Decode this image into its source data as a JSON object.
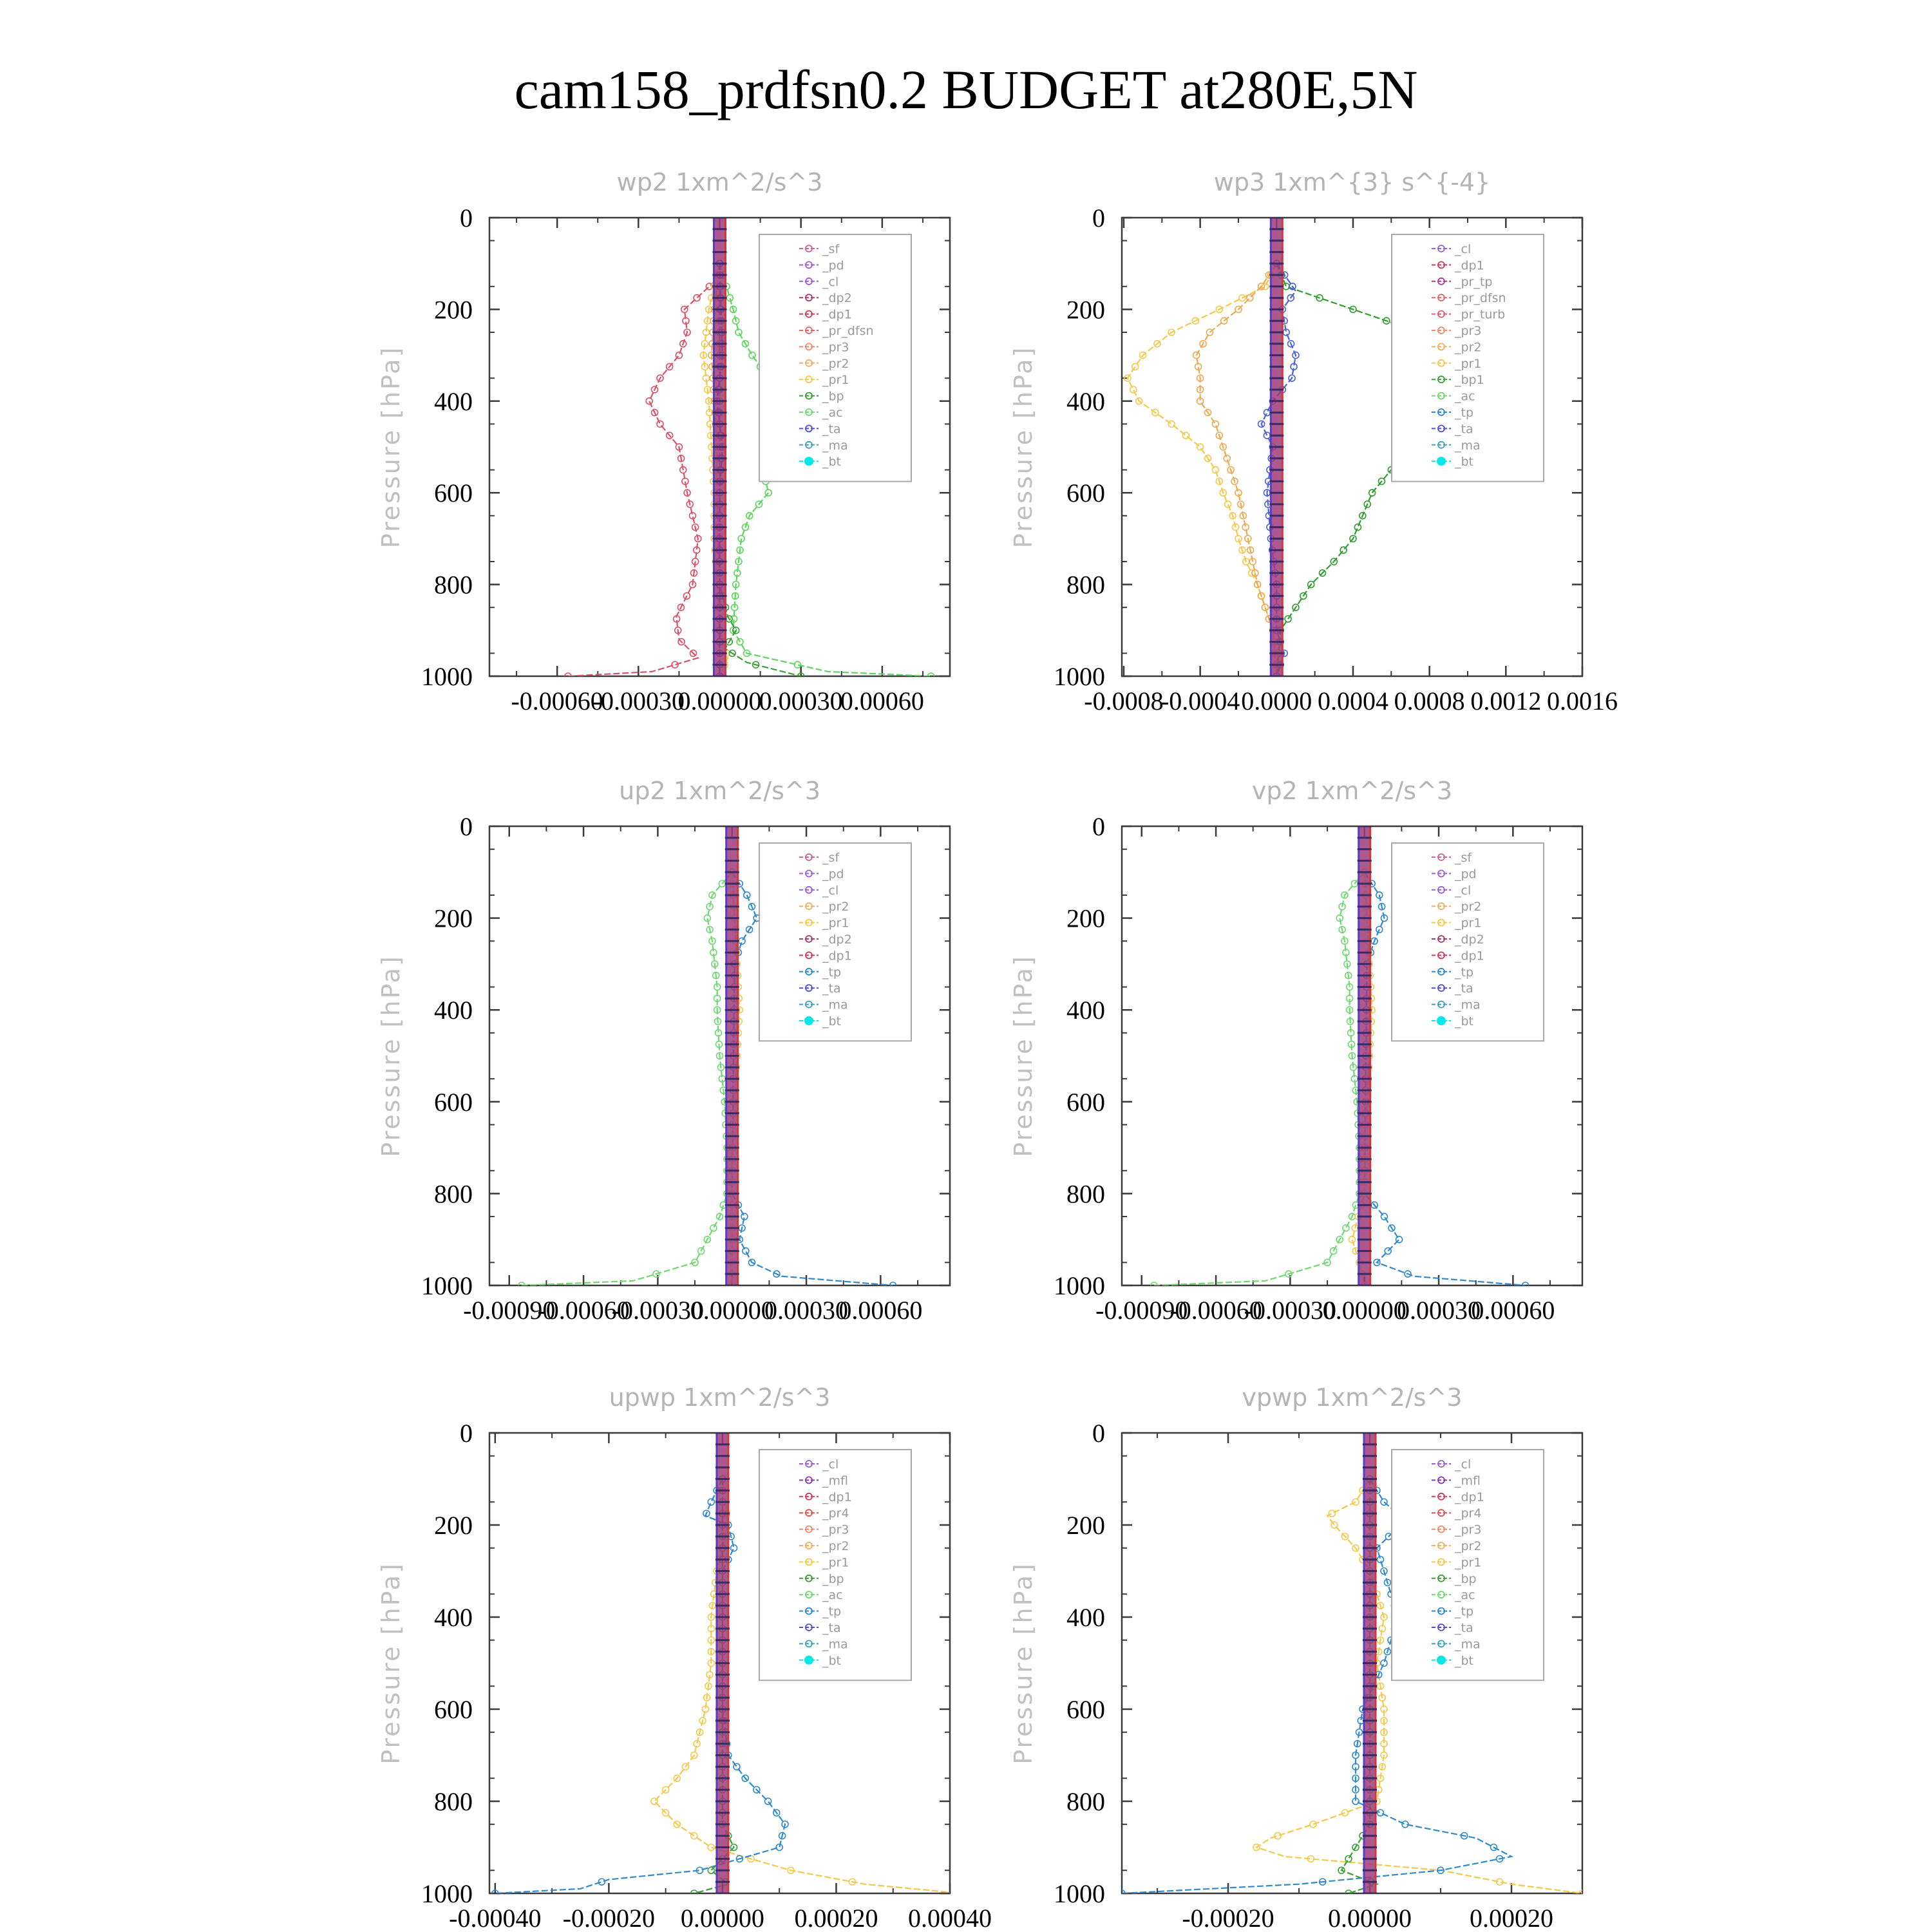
{
  "title": "cam158_prdfsn0.2  BUDGET at280E,5N",
  "chart_data": [
    {
      "type": "line",
      "title": "wp2   1xm^2/s^3",
      "ylabel": "Pressure [hPa]",
      "xlim": [
        -0.00085,
        0.00085
      ],
      "ylim": [
        1000,
        0
      ],
      "yticks": [
        0,
        200,
        400,
        600,
        800,
        1000
      ],
      "xticks": [
        -0.0006,
        -0.0003,
        0.0,
        0.0003,
        0.0006
      ],
      "xtick_labels": [
        "-0.00060",
        "-0.00030",
        "0.00000",
        "0.00030",
        "0.00060"
      ],
      "legend_position": "top-right",
      "legend": [
        "_sf",
        "_pd",
        "_cl",
        "_dp2",
        "_dp1",
        "_pr_dfsn",
        "_pr3",
        "_pr2",
        "_pr1",
        "_bp",
        "_ac",
        "_ta",
        "_ma",
        "_bt"
      ],
      "series": [
        {
          "name": "_dp1",
          "color": "#dc5068",
          "y": [
            100,
            140,
            200,
            250,
            300,
            350,
            400,
            450,
            500,
            600,
            700,
            800,
            870,
            920,
            960,
            990,
            1000
          ],
          "values": [
            0,
            -2e-05,
            -0.00013,
            -0.00012,
            -0.00015,
            -0.00022,
            -0.00026,
            -0.00022,
            -0.00015,
            -0.00012,
            -8e-05,
            -0.0001,
            -0.00016,
            -0.00015,
            -8e-05,
            -0.00025,
            -0.00056
          ]
        },
        {
          "name": "_pr2",
          "color": "#f5c84a",
          "y": [
            100,
            200,
            300,
            400,
            500,
            600,
            700,
            800,
            900,
            960,
            1000
          ],
          "values": [
            0,
            -4e-05,
            -6e-05,
            -4e-05,
            -3e-05,
            -2e-05,
            -2e-05,
            -1e-05,
            0,
            3e-05,
            0
          ]
        },
        {
          "name": "_pr1",
          "color": "#f0a850",
          "y": [
            100,
            200,
            300,
            400,
            500,
            600,
            800,
            1000
          ],
          "values": [
            0,
            -2e-05,
            -3e-05,
            -2e-05,
            -1e-05,
            -1e-05,
            0,
            0
          ]
        },
        {
          "name": "_ac",
          "color": "#5cd65c",
          "y": [
            100,
            140,
            200,
            250,
            300,
            350,
            400,
            450,
            500,
            550,
            600,
            650,
            700,
            800,
            900,
            950,
            990,
            1000
          ],
          "values": [
            0,
            2e-05,
            5e-05,
            7e-05,
            0.00012,
            0.00018,
            0.0003,
            0.00033,
            0.00022,
            0.00016,
            0.00018,
            0.00011,
            8e-05,
            6e-05,
            5e-05,
            0.0001,
            0.0004,
            0.00078
          ]
        },
        {
          "name": "_bp",
          "color": "#3aa03a",
          "y": [
            100,
            800,
            870,
            900,
            940,
            970,
            1000
          ],
          "values": [
            0,
            0,
            3e-05,
            6e-05,
            2e-05,
            0.0001,
            0.0003
          ]
        },
        {
          "name": "_ta",
          "color": "#3a3ad0",
          "y": [
            100,
            300,
            400,
            500,
            600,
            800,
            1000
          ],
          "values": [
            0,
            1e-05,
            -1e-05,
            1e-05,
            0,
            0,
            0
          ]
        }
      ]
    },
    {
      "type": "line",
      "title": "wp3   1xm^{3} s^{-4}",
      "ylabel": "Pressure [hPa]",
      "xlim": [
        -0.00081,
        0.0016
      ],
      "ylim": [
        1000,
        0
      ],
      "yticks": [
        0,
        200,
        400,
        600,
        800,
        1000
      ],
      "xticks": [
        -0.0008,
        -0.0004,
        0.0,
        0.0004,
        0.0008,
        0.0012,
        0.0016
      ],
      "xtick_labels": [
        "-0.0008",
        "-0.0004",
        "0.0000",
        "0.0004",
        "0.0008",
        "0.0012",
        "0.0016"
      ],
      "legend_position": "top-right",
      "legend": [
        "_cl",
        "_dp1",
        "_pr_tp",
        "_pr_dfsn",
        "_pr_turb",
        "_pr3",
        "_pr2",
        "_pr1",
        "_bp1",
        "_ac",
        "_tp",
        "_ta",
        "_ma",
        "_bt"
      ],
      "series": [
        {
          "name": "_bp1",
          "color": "#2e9e2e",
          "y": [
            100,
            150,
            200,
            250,
            300,
            350,
            400,
            450,
            500,
            550,
            600,
            650,
            700,
            750,
            800,
            850,
            900,
            950,
            1000
          ],
          "values": [
            0,
            5e-05,
            0.0004,
            0.00075,
            0.0009,
            0.001,
            0.00115,
            0.0009,
            0.00065,
            0.0006,
            0.0005,
            0.00045,
            0.0004,
            0.0003,
            0.00018,
            0.0001,
            2e-05,
            1e-05,
            0
          ]
        },
        {
          "name": "_pr2",
          "color": "#f5c84a",
          "y": [
            100,
            150,
            200,
            250,
            300,
            350,
            400,
            450,
            500,
            550,
            600,
            650,
            700,
            750,
            800,
            850,
            900,
            950,
            1000
          ],
          "values": [
            0,
            -6e-05,
            -0.0003,
            -0.00055,
            -0.0007,
            -0.00078,
            -0.00072,
            -0.00055,
            -0.0004,
            -0.00032,
            -0.00028,
            -0.00023,
            -0.0002,
            -0.00016,
            -0.0001,
            -6e-05,
            -2e-05,
            0,
            0
          ]
        },
        {
          "name": "_pr1",
          "color": "#f0a850",
          "y": [
            100,
            150,
            200,
            250,
            300,
            350,
            400,
            450,
            500,
            600,
            700,
            800,
            900,
            1000
          ],
          "values": [
            0,
            -8e-05,
            -0.0002,
            -0.00035,
            -0.00042,
            -0.0004,
            -0.0004,
            -0.00032,
            -0.00028,
            -0.0002,
            -0.00015,
            -0.0001,
            -2e-05,
            0
          ]
        },
        {
          "name": "_tp",
          "color": "#4a60e0",
          "y": [
            100,
            160,
            200,
            250,
            300,
            350,
            400,
            450,
            500,
            600,
            700,
            800,
            900,
            950,
            1000
          ],
          "values": [
            0,
            0.0001,
            3e-05,
            5e-05,
            0.0001,
            8e-05,
            -2e-05,
            -8e-05,
            -2e-05,
            -5e-05,
            -3e-05,
            0,
            0,
            4e-05,
            0
          ]
        }
      ]
    },
    {
      "type": "line",
      "title": "up2   1xm^2/s^3",
      "ylabel": "Pressure [hPa]",
      "xlim": [
        -0.00098,
        0.00088
      ],
      "ylim": [
        1000,
        0
      ],
      "yticks": [
        0,
        200,
        400,
        600,
        800,
        1000
      ],
      "xticks": [
        -0.0009,
        -0.0006,
        -0.0003,
        0.0,
        0.0003,
        0.0006
      ],
      "xtick_labels": [
        "-0.00090",
        "-0.00060",
        "-0.00030",
        "0.00000",
        "0.00030",
        "0.00060"
      ],
      "legend_position": "top-right",
      "legend": [
        "_sf",
        "_pd",
        "_cl",
        "_pr2",
        "_pr1",
        "_dp2",
        "_dp1",
        "_tp",
        "_ta",
        "_ma",
        "_bt"
      ],
      "series": [
        {
          "name": "_dp1",
          "color": "#70d870",
          "y": [
            100,
            150,
            200,
            250,
            300,
            350,
            400,
            500,
            600,
            700,
            800,
            850,
            900,
            950,
            990,
            1000
          ],
          "values": [
            0,
            -8e-05,
            -0.0001,
            -8e-05,
            -7e-05,
            -6e-05,
            -6e-05,
            -5e-05,
            -3e-05,
            -2e-05,
            -2e-05,
            -5e-05,
            -0.0001,
            -0.00015,
            -0.0004,
            -0.00085
          ]
        },
        {
          "name": "_tp",
          "color": "#2e8ad0",
          "y": [
            100,
            150,
            200,
            250,
            300,
            800,
            850,
            900,
            950,
            980,
            1000
          ],
          "values": [
            0,
            6e-05,
            0.0001,
            4e-05,
            1e-05,
            0,
            5e-05,
            3e-05,
            8e-05,
            0.0002,
            0.00065
          ]
        },
        {
          "name": "_pr1",
          "color": "#f5c84a",
          "y": [
            100,
            200,
            300,
            400,
            500,
            600,
            700,
            800,
            900,
            1000
          ],
          "values": [
            0,
            1e-05,
            2e-05,
            3e-05,
            2e-05,
            1e-05,
            0,
            0,
            0,
            0
          ]
        }
      ]
    },
    {
      "type": "line",
      "title": "vp2   1xm^2/s^3",
      "ylabel": "Pressure [hPa]",
      "xlim": [
        -0.00098,
        0.00088
      ],
      "ylim": [
        1000,
        0
      ],
      "yticks": [
        0,
        200,
        400,
        600,
        800,
        1000
      ],
      "xticks": [
        -0.0009,
        -0.0006,
        -0.0003,
        0.0,
        0.0003,
        0.0006
      ],
      "xtick_labels": [
        "-0.00090",
        "-0.00060",
        "-0.00030",
        "0.00000",
        "0.00030",
        "0.00060"
      ],
      "legend_position": "top-right",
      "legend": [
        "_sf",
        "_pd",
        "_cl",
        "_pr2",
        "_pr1",
        "_dp2",
        "_dp1",
        "_tp",
        "_ta",
        "_ma",
        "_bt"
      ],
      "series": [
        {
          "name": "_dp1",
          "color": "#70d870",
          "y": [
            100,
            150,
            200,
            250,
            300,
            350,
            400,
            500,
            600,
            700,
            800,
            850,
            900,
            950,
            990,
            1000
          ],
          "values": [
            0,
            -8e-05,
            -0.0001,
            -8e-05,
            -7e-05,
            -6e-05,
            -6e-05,
            -5e-05,
            -3e-05,
            -2e-05,
            -2e-05,
            -5e-05,
            -0.0001,
            -0.00015,
            -0.0004,
            -0.00085
          ]
        },
        {
          "name": "_tp",
          "color": "#2e8ad0",
          "y": [
            100,
            150,
            200,
            250,
            300,
            800,
            850,
            900,
            950,
            980,
            1000
          ],
          "values": [
            0,
            6e-05,
            8e-05,
            4e-05,
            1e-05,
            0,
            8e-05,
            0.00014,
            5e-05,
            0.0002,
            0.00065
          ]
        },
        {
          "name": "_pr1",
          "color": "#f5c84a",
          "y": [
            100,
            200,
            300,
            400,
            500,
            600,
            700,
            800,
            900,
            950,
            1000
          ],
          "values": [
            0,
            1e-05,
            2e-05,
            3e-05,
            2e-05,
            1e-05,
            0,
            0,
            -5e-05,
            -2e-05,
            0
          ]
        }
      ]
    },
    {
      "type": "line",
      "title": "upwp   1xm^2/s^3",
      "ylabel": "Pressure [hPa]",
      "xlim": [
        -0.00041,
        0.0004
      ],
      "ylim": [
        1000,
        0
      ],
      "yticks": [
        0,
        200,
        400,
        600,
        800,
        1000
      ],
      "xticks": [
        -0.0004,
        -0.0002,
        0.0,
        0.0002,
        0.0004
      ],
      "xtick_labels": [
        "-0.00040",
        "-0.00020",
        "0.00000",
        "0.00020",
        "0.00040"
      ],
      "legend_position": "top-right",
      "legend": [
        "_cl",
        "_mfl",
        "_dp1",
        "_pr4",
        "_pr3",
        "_pr2",
        "_pr1",
        "_bp",
        "_ac",
        "_tp",
        "_ta",
        "_ma",
        "_bt"
      ],
      "series": [
        {
          "name": "_pr1",
          "color": "#f5c84a",
          "y": [
            100,
            200,
            300,
            400,
            500,
            600,
            700,
            750,
            800,
            850,
            900,
            950,
            980,
            1000
          ],
          "values": [
            0,
            1e-05,
            -1e-05,
            -2e-05,
            -2e-05,
            -3e-05,
            -5e-05,
            -8e-05,
            -0.00012,
            -8e-05,
            -2e-05,
            0.00012,
            0.00025,
            0.00042
          ]
        },
        {
          "name": "_tp",
          "color": "#2e8ad0",
          "y": [
            100,
            150,
            180,
            200,
            250,
            300,
            600,
            700,
            750,
            800,
            850,
            900,
            950,
            970,
            990,
            1000
          ],
          "values": [
            0,
            -2e-05,
            -3e-05,
            1e-05,
            2e-05,
            0,
            0,
            1e-05,
            4e-05,
            8e-05,
            0.00011,
            0.0001,
            -4e-05,
            -0.0002,
            -0.00025,
            -0.0004
          ]
        },
        {
          "name": "_bp",
          "color": "#3aa03a",
          "y": [
            100,
            850,
            900,
            950,
            980,
            1000
          ],
          "values": [
            0,
            0,
            2e-05,
            -2e-05,
            1e-05,
            -5e-05
          ]
        }
      ]
    },
    {
      "type": "line",
      "title": "vpwp   1xm^2/s^3",
      "ylabel": "Pressure [hPa]",
      "xlim": [
        -0.00035,
        0.0003
      ],
      "ylim": [
        1000,
        0
      ],
      "yticks": [
        0,
        200,
        400,
        600,
        800,
        1000
      ],
      "xticks": [
        -0.0002,
        0.0,
        0.0002
      ],
      "xtick_labels": [
        "-0.00020",
        "0.00000",
        "0.00020"
      ],
      "legend_position": "top-right",
      "legend": [
        "_cl",
        "_mfl",
        "_dp1",
        "_pr4",
        "_pr3",
        "_pr2",
        "_pr1",
        "_bp",
        "_ac",
        "_tp",
        "_ta",
        "_ma",
        "_bt"
      ],
      "series": [
        {
          "name": "_pr1",
          "color": "#f5c84a",
          "y": [
            100,
            150,
            180,
            200,
            250,
            300,
            400,
            500,
            600,
            700,
            800,
            850,
            880,
            900,
            920,
            950,
            980,
            1000
          ],
          "values": [
            0,
            -2e-05,
            -6e-05,
            -5e-05,
            -2e-05,
            0,
            2e-05,
            1e-05,
            2e-05,
            2e-05,
            1e-05,
            -8e-05,
            -0.00014,
            -0.00016,
            -0.00012,
            0.0001,
            0.0002,
            0.0003
          ]
        },
        {
          "name": "_tp",
          "color": "#2e8ad0",
          "y": [
            100,
            150,
            190,
            250,
            300,
            400,
            500,
            600,
            700,
            800,
            850,
            880,
            920,
            950,
            980,
            1000
          ],
          "values": [
            0,
            2e-05,
            5e-05,
            1e-05,
            2e-05,
            4e-05,
            2e-05,
            -1e-05,
            -2e-05,
            -2e-05,
            5e-05,
            0.00015,
            0.0002,
            0.0001,
            -0.0001,
            -0.00035
          ]
        },
        {
          "name": "_bp",
          "color": "#3aa03a",
          "y": [
            100,
            850,
            900,
            950,
            980,
            1000
          ],
          "values": [
            0,
            0,
            -2e-05,
            -4e-05,
            1e-05,
            -3e-05
          ]
        }
      ]
    }
  ],
  "legend_colors": {
    "_sf": "#d060a0",
    "_pd": "#a060d0",
    "_cl": "#9a60d8",
    "_mfl": "#8a3ab0",
    "_dp2": "#b03a70",
    "_dp1": "#d03a5a",
    "_pr_dfsn": "#e06a6a",
    "_pr_tp": "#b03a9a",
    "_pr_turb": "#e05a7a",
    "_pr4": "#e05050",
    "_pr3": "#f08a6a",
    "_pr2": "#f0b060",
    "_pr1": "#f5c84a",
    "_bp": "#3aa03a",
    "_bp1": "#3aa03a",
    "_ac": "#70d870",
    "_tp": "#2e8ad0",
    "_ta": "#5050d8",
    "_ma": "#40a0c0",
    "_bt": "#00e8e8"
  }
}
